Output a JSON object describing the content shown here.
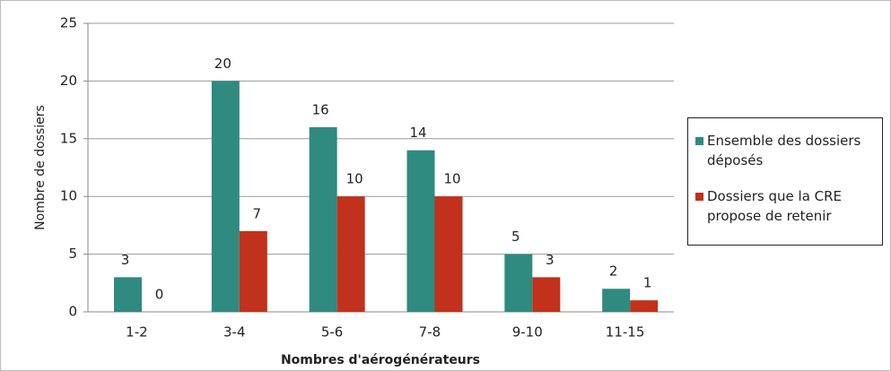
{
  "chart_data": {
    "type": "bar",
    "x_label": "Nombres d'aérogénérateurs",
    "y_label": "Nombre de dossiers",
    "categories": [
      "1-2",
      "3-4",
      "5-6",
      "7-8",
      "9-10",
      "11-15"
    ],
    "series": [
      {
        "name": "Ensemble des dossiers déposés",
        "color": "#2f8a80",
        "values": [
          3,
          20,
          16,
          14,
          5,
          2
        ]
      },
      {
        "name": "Dossiers que la CRE propose de retenir",
        "color": "#c1311b",
        "values": [
          0,
          7,
          10,
          10,
          3,
          1
        ]
      }
    ],
    "ylim": [
      0,
      25
    ],
    "yticks": [
      0,
      5,
      10,
      15,
      20,
      25
    ],
    "grid": true,
    "legend": "right"
  }
}
